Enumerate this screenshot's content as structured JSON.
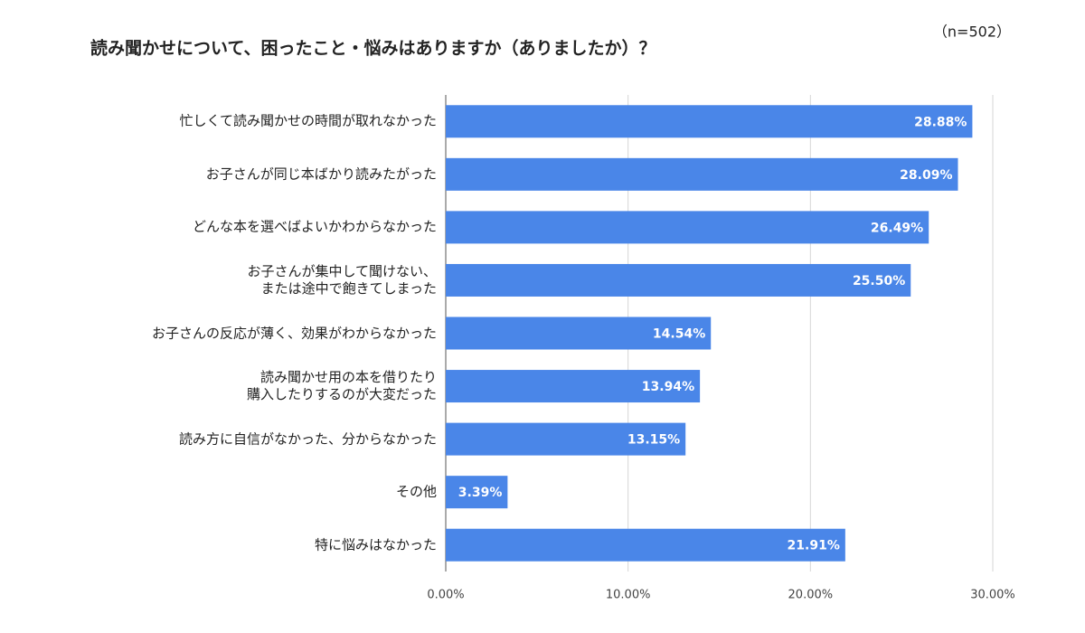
{
  "chart_data": {
    "type": "hbar",
    "title": "読み聞かせについて、困ったこと・悩みはありますか（ありましたか）？",
    "annotation": "（n=502）",
    "categories": [
      "忙しくて読み聞かせの時間が取れなかった",
      "お子さんが同じ本ばかり読みたがった",
      "どんな本を選べばよいかわからなかった",
      "お子さんが集中して聞けない、\nまたは途中で飽きてしまった",
      "お子さんの反応が薄く、効果がわからなかった",
      "読み聞かせ用の本を借りたり\n購入したりするのが大変だった",
      "読み方に自信がなかった、分からなかった",
      "その他",
      "特に悩みはなかった"
    ],
    "values": [
      28.88,
      28.09,
      26.49,
      25.5,
      14.54,
      13.94,
      13.15,
      3.39,
      21.91
    ],
    "value_labels": [
      "28.88%",
      "28.09%",
      "26.49%",
      "25.50%",
      "14.54%",
      "13.94%",
      "13.15%",
      "3.39%",
      "21.91%"
    ],
    "color": "#4a86e8",
    "xlim": [
      0,
      30
    ],
    "xticks": [
      {
        "value": 0,
        "label": "0.00%"
      },
      {
        "value": 10,
        "label": "10.00%"
      },
      {
        "value": 20,
        "label": "20.00%"
      },
      {
        "value": 30,
        "label": "30.00%"
      }
    ],
    "grid": true
  }
}
